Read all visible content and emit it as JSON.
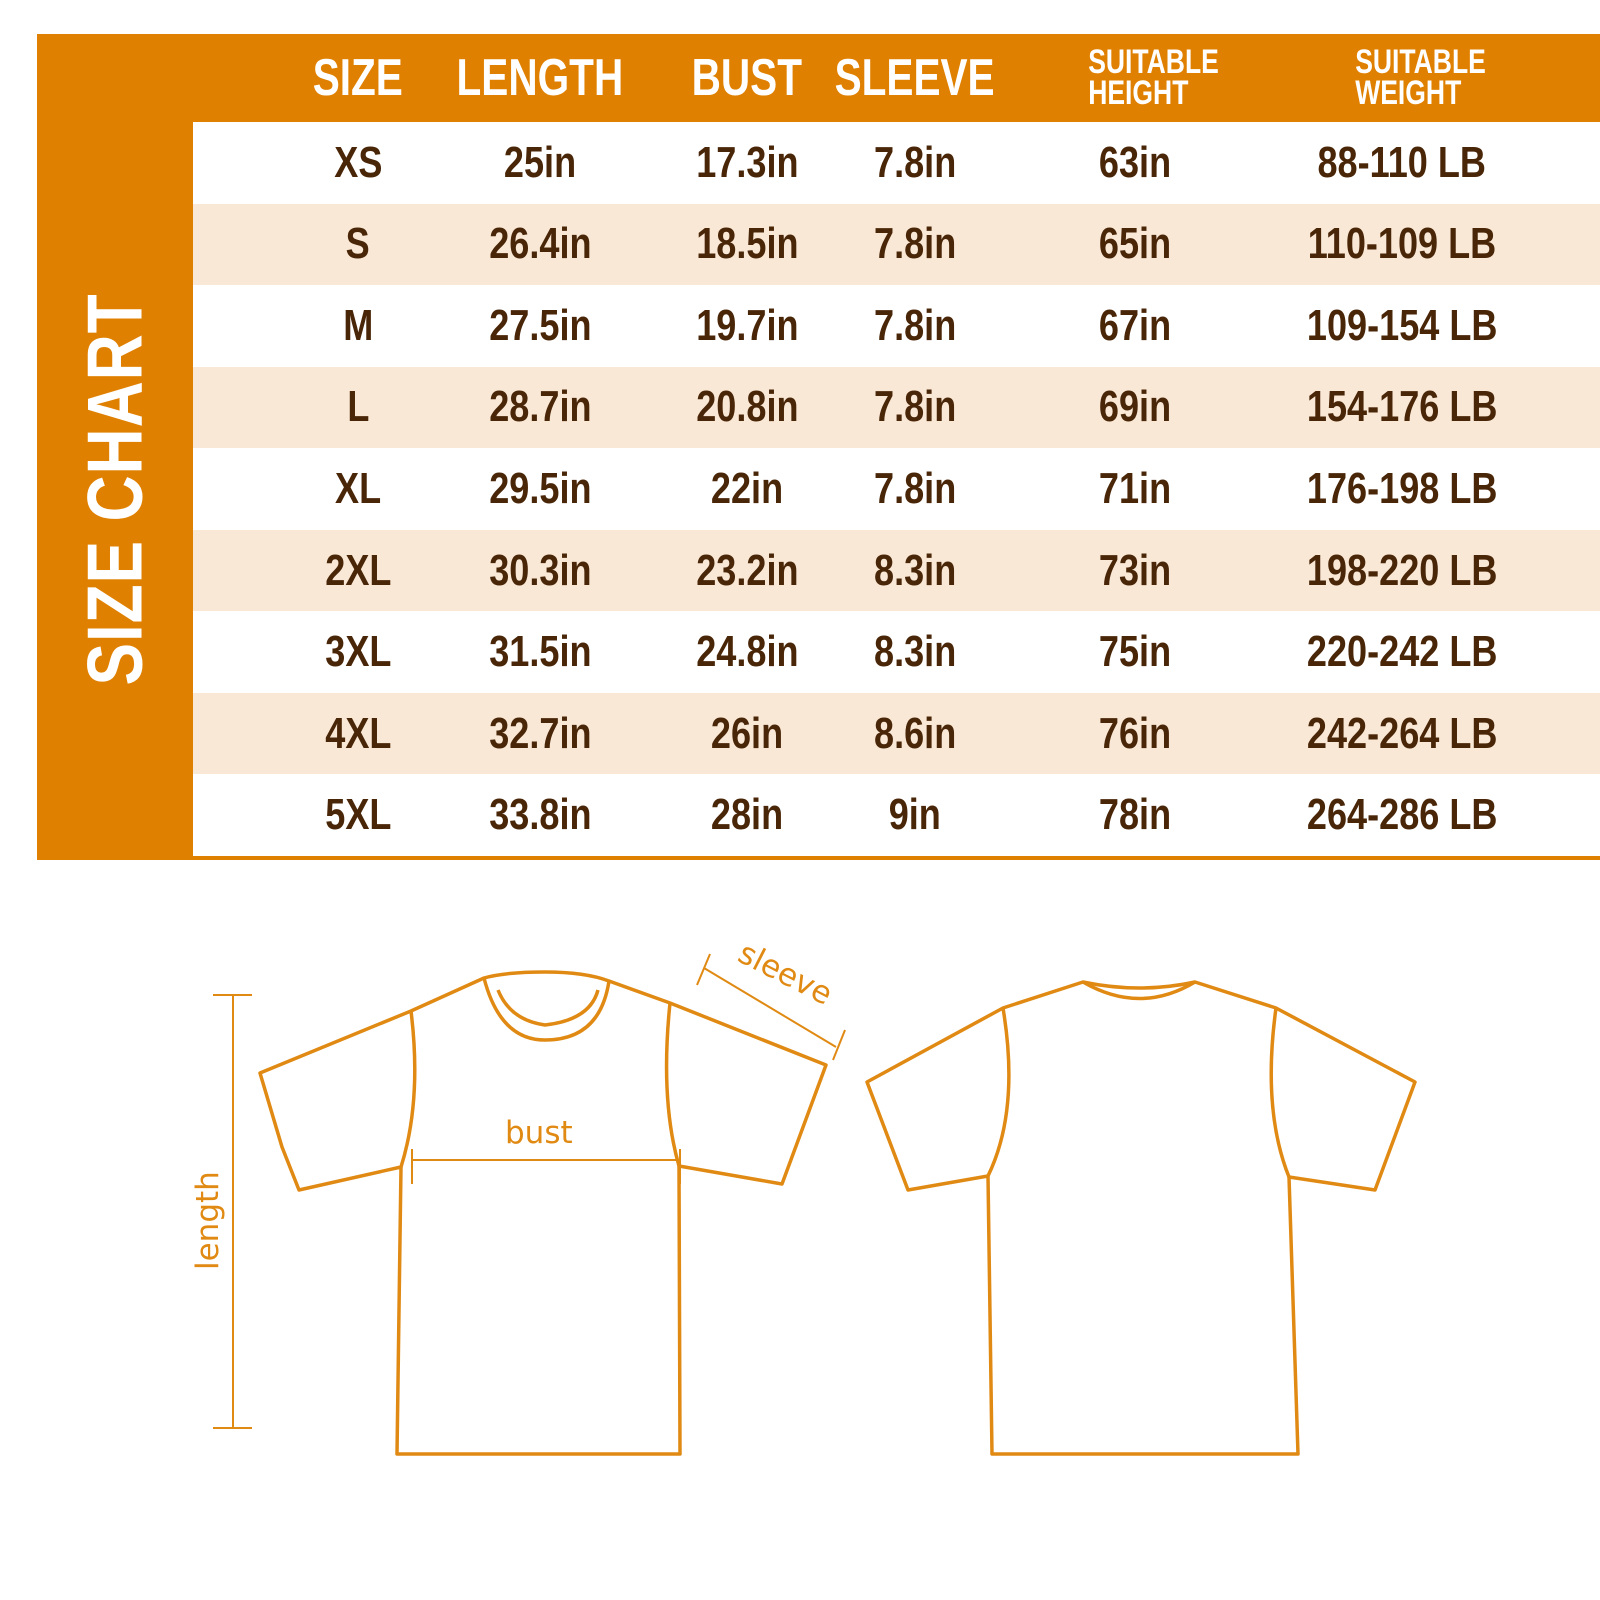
{
  "title": "SIZE CHART",
  "colors": {
    "accent": "#e08000",
    "row_alt": "#fae8d6",
    "text": "#4a2608"
  },
  "columns": [
    "SIZE",
    "LENGTH",
    "BUST",
    "SLEEVE",
    "SUITABLE HEIGHT",
    "SUITABLE WEIGHT"
  ],
  "rows": [
    [
      "XS",
      "25in",
      "17.3in",
      "7.8in",
      "63in",
      "88-110 LB"
    ],
    [
      "S",
      "26.4in",
      "18.5in",
      "7.8in",
      "65in",
      "110-109 LB"
    ],
    [
      "M",
      "27.5in",
      "19.7in",
      "7.8in",
      "67in",
      "109-154 LB"
    ],
    [
      "L",
      "28.7in",
      "20.8in",
      "7.8in",
      "69in",
      "154-176 LB"
    ],
    [
      "XL",
      "29.5in",
      "22in",
      "7.8in",
      "71in",
      "176-198 LB"
    ],
    [
      "2XL",
      "30.3in",
      "23.2in",
      "8.3in",
      "73in",
      "198-220 LB"
    ],
    [
      "3XL",
      "31.5in",
      "24.8in",
      "8.3in",
      "75in",
      "220-242 LB"
    ],
    [
      "4XL",
      "32.7in",
      "26in",
      "8.6in",
      "76in",
      "242-264 LB"
    ],
    [
      "5XL",
      "33.8in",
      "28in",
      "9in",
      "78in",
      "264-286 LB"
    ]
  ],
  "diagram": {
    "length": "length",
    "bust": "bust",
    "sleeve": "sleeve"
  }
}
